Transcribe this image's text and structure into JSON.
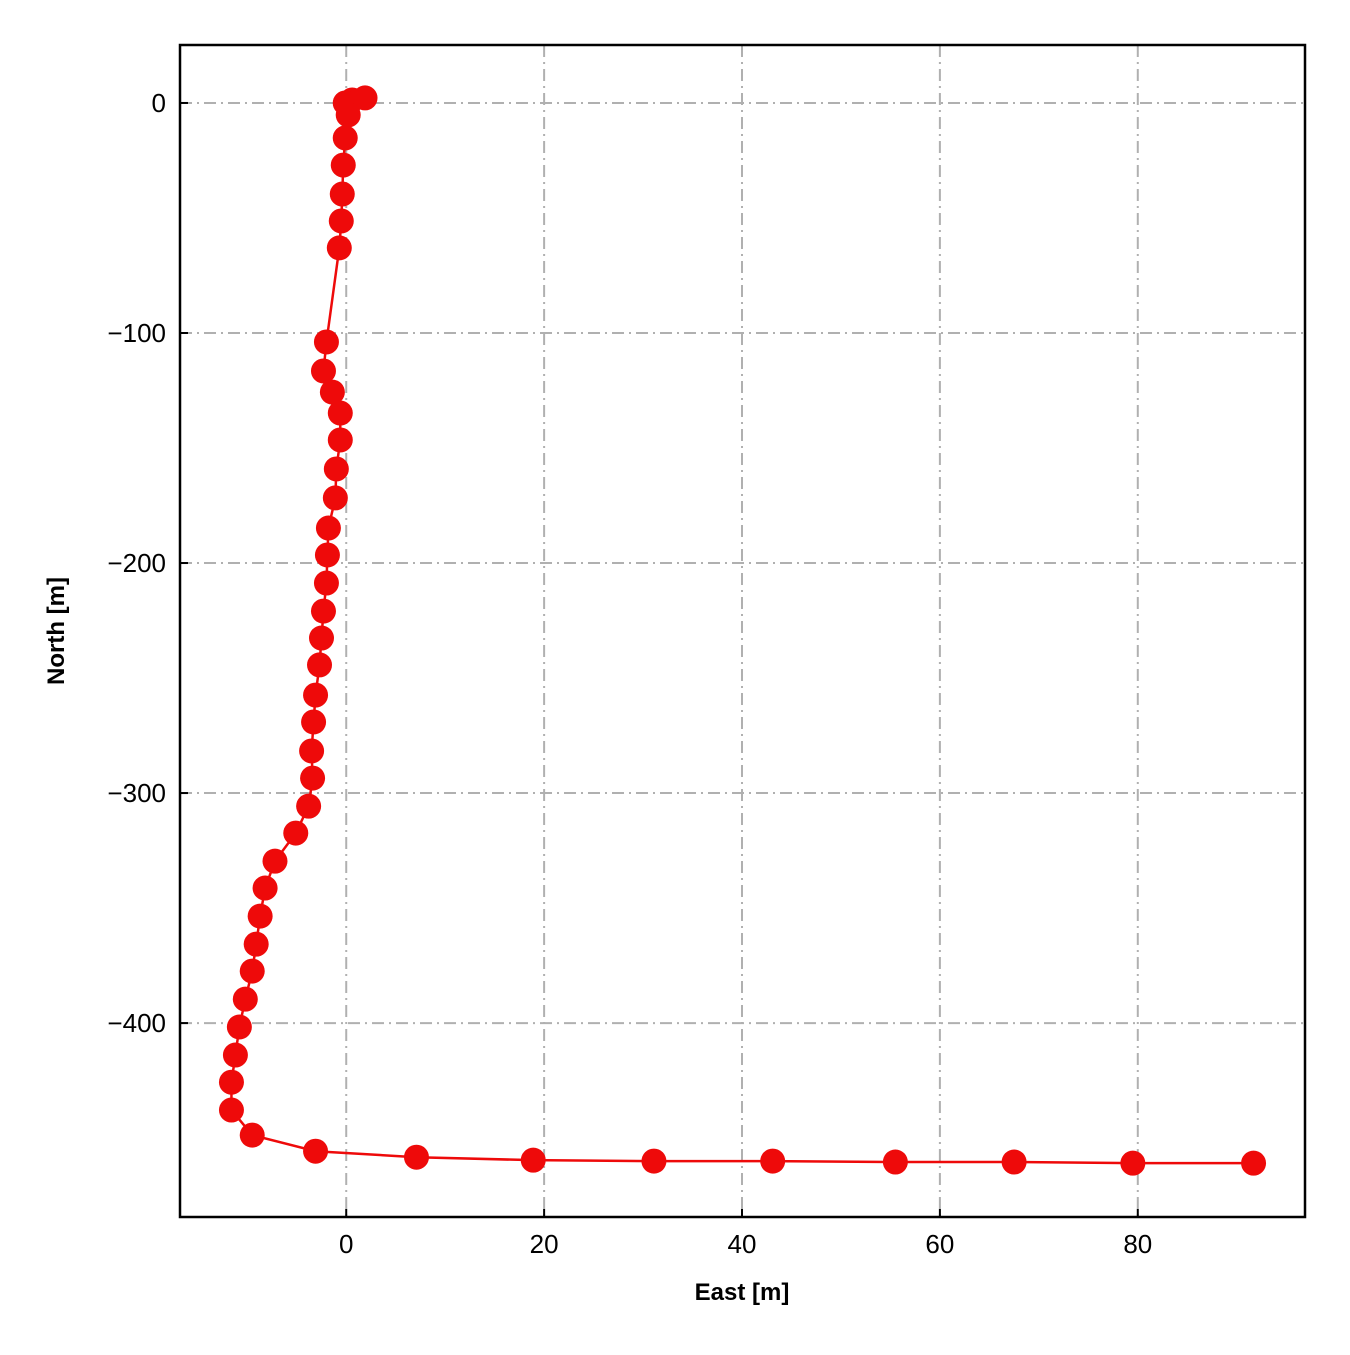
{
  "chart_data": {
    "type": "line",
    "x_label": "East [m]",
    "y_label": "North [m]",
    "x": [
      1.9,
      0.6,
      -0.1,
      0.2,
      -0.1,
      -0.3,
      -0.4,
      -0.5,
      -0.7,
      -2.0,
      -2.3,
      -1.4,
      -0.6,
      -0.6,
      -1.0,
      -1.1,
      -1.8,
      -1.9,
      -2.0,
      -2.3,
      -2.5,
      -2.7,
      -3.1,
      -3.3,
      -3.5,
      -3.4,
      -3.8,
      -5.1,
      -7.2,
      -8.2,
      -8.7,
      -9.1,
      -9.5,
      -10.2,
      -10.8,
      -11.2,
      -11.6,
      -11.6,
      -9.5,
      -3.1,
      7.1,
      18.9,
      31.1,
      43.1,
      55.5,
      67.5,
      79.5,
      91.7
    ],
    "series": [
      {
        "color": "#ee0a0a",
        "values": [
          2.2,
          1.3,
          0,
          -5.2,
          -15.2,
          -27,
          -39.6,
          -51.3,
          -63,
          -103.9,
          -116.5,
          -125.7,
          -134.8,
          -146.5,
          -159.1,
          -171.7,
          -184.8,
          -196.5,
          -208.7,
          -220.9,
          -232.6,
          -244.3,
          -257.4,
          -269.1,
          -281.7,
          -293.5,
          -305.7,
          -317.4,
          -329.6,
          -341.3,
          -353.5,
          -365.7,
          -377.4,
          -389.6,
          -401.7,
          -413.9,
          -425.7,
          -437.8,
          -448.7,
          -455.7,
          -458.3,
          -459.6,
          -460,
          -460,
          -460.4,
          -460.4,
          -460.9,
          -460.9
        ]
      }
    ],
    "xlim": [
      -16.8,
      96.9
    ],
    "ylim": [
      -484.3,
      25.2
    ],
    "xticks": [
      0,
      20,
      40,
      60,
      80
    ],
    "yticks": [
      {
        "value": -400,
        "label": "−400"
      },
      {
        "value": -300,
        "label": "−300"
      },
      {
        "value": -200,
        "label": "−200"
      },
      {
        "value": -100,
        "label": "−100"
      },
      0
    ],
    "grid": true
  }
}
